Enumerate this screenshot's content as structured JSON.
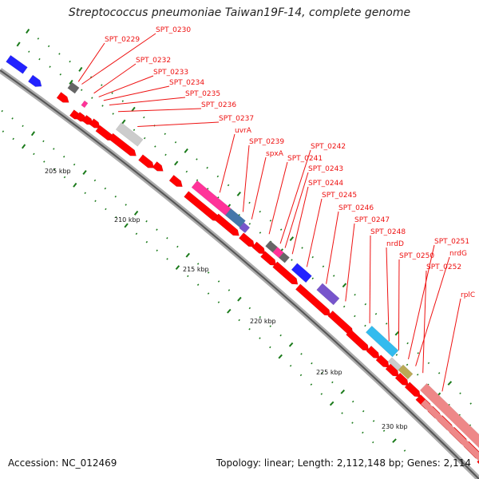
{
  "title": "Streptococcus pneumoniae Taiwan19F-14, complete genome",
  "footer": {
    "accession": "Accession: NC_012469",
    "stats": "Topology: linear; Length: 2,112,148 bp; Genes: 2,114"
  },
  "colors": {
    "backbone": "#888888",
    "gene_forward": "#ff0000",
    "gene_reverse": "#ff0000",
    "label_line": "#ee1111",
    "tick": "#1a7a1a",
    "pink": "#ff3399",
    "gray": "#666666",
    "light_gray": "#cccccc",
    "steel_blue": "#4477aa",
    "dark_blue": "#2222ff",
    "violet": "#7755cc",
    "cyan": "#33bbee",
    "khaki": "#bbaa55",
    "salmon": "#ee8888"
  },
  "scale_labels": [
    "205 kbp",
    "210 kbp",
    "215 kbp",
    "220 kbp",
    "225 kbp",
    "230 kbp"
  ],
  "gene_labels": [
    "SPT_0230",
    "SPT_0229",
    "SPT_0232",
    "SPT_0233",
    "SPT_0234",
    "SPT_0235",
    "SPT_0236",
    "SPT_0237",
    "uvrA",
    "SPT_0239",
    "spxA",
    "SPT_0241",
    "SPT_0242",
    "SPT_0243",
    "SPT_0244",
    "SPT_0245",
    "SPT_0246",
    "SPT_0247",
    "SPT_0248",
    "nrdD",
    "SPT_0250",
    "SPT_0251",
    "nrdG",
    "SPT_0252",
    "rplC"
  ]
}
